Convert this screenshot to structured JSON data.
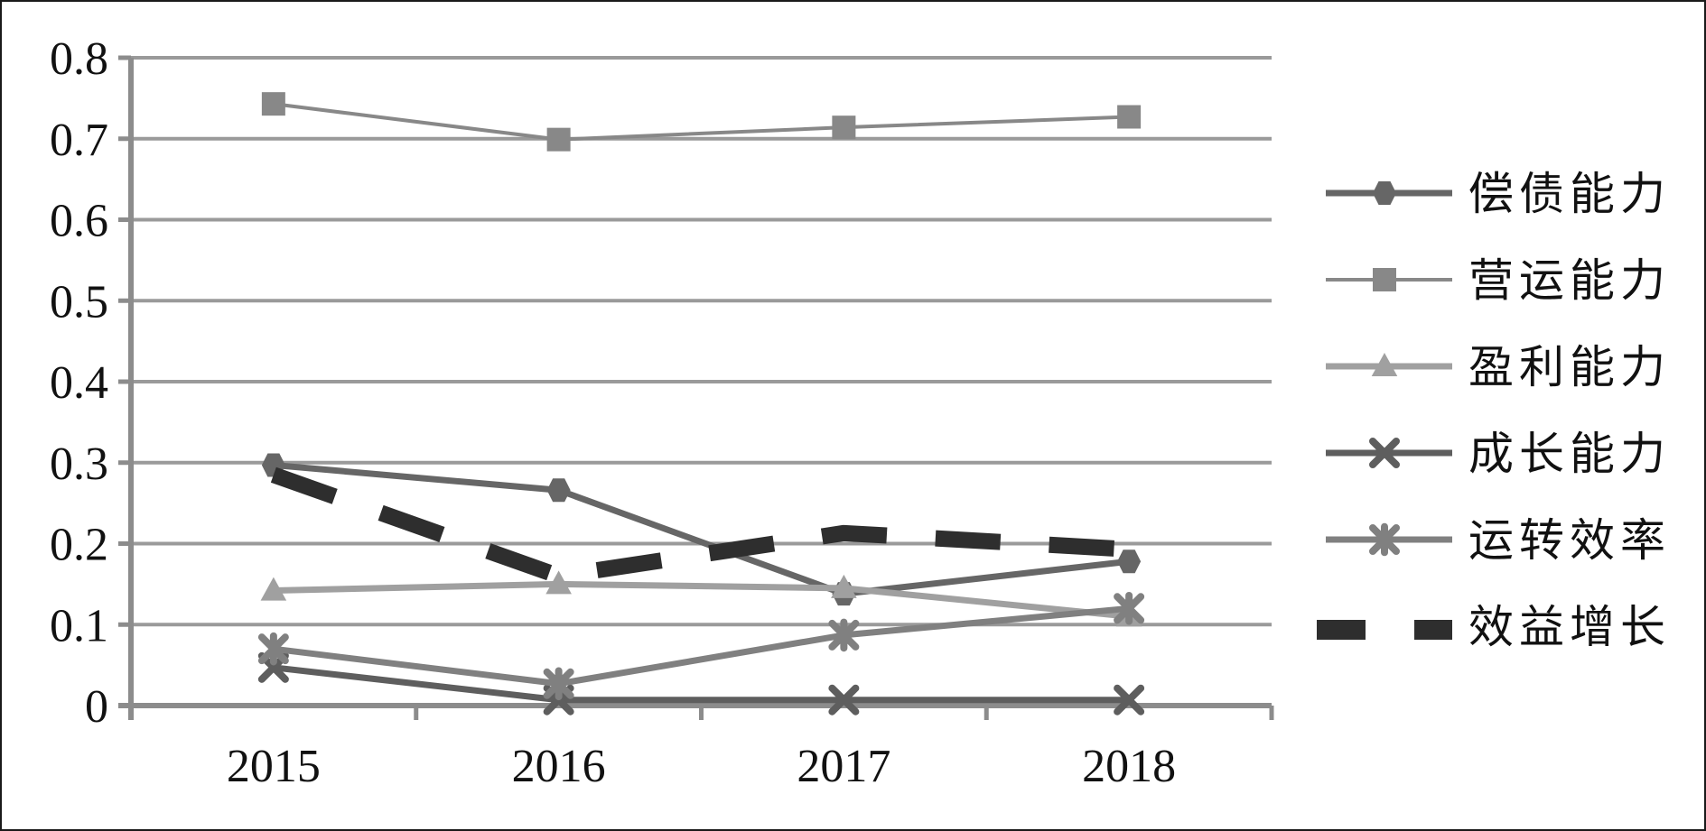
{
  "chart_data": {
    "type": "line",
    "title": "",
    "xlabel": "",
    "ylabel": "",
    "categories": [
      "2015",
      "2016",
      "2017",
      "2018"
    ],
    "ylim": [
      0,
      0.8
    ],
    "yticks": [
      0,
      0.1,
      0.2,
      0.3,
      0.4,
      0.5,
      0.6,
      0.7,
      0.8
    ],
    "ytick_labels": [
      "0",
      "0.1",
      "0.2",
      "0.3",
      "0.4",
      "0.5",
      "0.6",
      "0.7",
      "0.8"
    ],
    "grid": "horizontal",
    "legend_position": "right",
    "series": [
      {
        "name": "偿债能力",
        "values": [
          0.297,
          0.266,
          0.138,
          0.178
        ],
        "color": "#666666",
        "marker": "circle",
        "dash": "solid",
        "width": 7
      },
      {
        "name": "营运能力",
        "values": [
          0.743,
          0.699,
          0.714,
          0.727
        ],
        "color": "#888888",
        "marker": "square",
        "dash": "solid",
        "width": 4
      },
      {
        "name": "盈利能力",
        "values": [
          0.142,
          0.15,
          0.145,
          0.11
        ],
        "color": "#a0a0a0",
        "marker": "triangle",
        "dash": "solid",
        "width": 7
      },
      {
        "name": "成长能力",
        "values": [
          0.047,
          0.007,
          0.007,
          0.007
        ],
        "color": "#5e5e5e",
        "marker": "x",
        "dash": "solid",
        "width": 7
      },
      {
        "name": "运转效率",
        "values": [
          0.07,
          0.027,
          0.087,
          0.12
        ],
        "color": "#808080",
        "marker": "star",
        "dash": "solid",
        "width": 7
      },
      {
        "name": "效益增长",
        "values": [
          0.285,
          0.16,
          0.213,
          0.193
        ],
        "color": "#2e2e2e",
        "marker": "none",
        "dash": "dashed",
        "width": 18
      }
    ]
  }
}
